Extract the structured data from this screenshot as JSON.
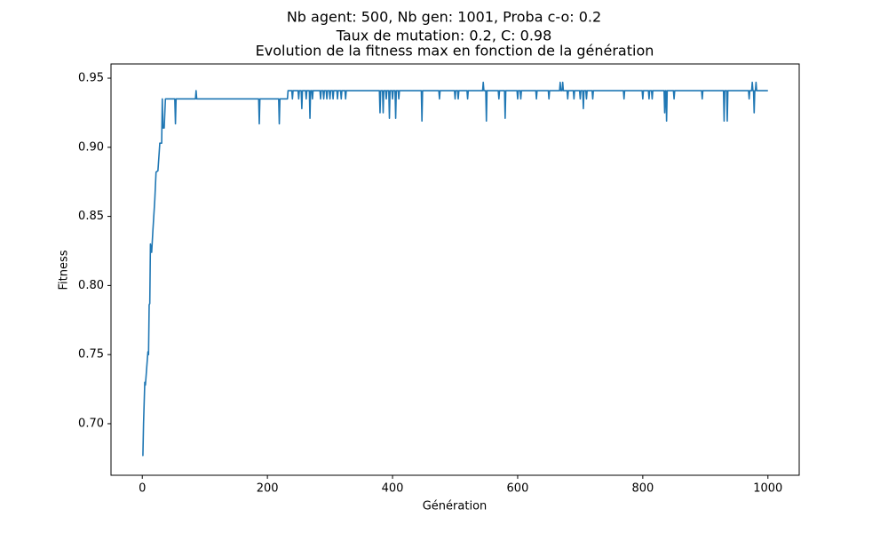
{
  "chart_data": {
    "type": "line",
    "suptitle": [
      "Nb agent: 500, Nb gen: 1001, Proba c-o: 0.2",
      "Taux de mutation: 0.2, C: 0.98"
    ],
    "title": "Evolution de la fitness max en fonction de la génération",
    "xlabel": "Génération",
    "ylabel": "Fitness",
    "xlim": [
      -50,
      1050
    ],
    "ylim": [
      0.6627,
      0.9603
    ],
    "xticks": [
      0,
      200,
      400,
      600,
      800,
      1000
    ],
    "yticks": [
      {
        "value": 0.7,
        "label": "0.70"
      },
      0.75,
      {
        "value": 0.8,
        "label": "0.80"
      },
      0.85,
      {
        "value": 0.9,
        "label": "0.90"
      },
      0.95
    ],
    "grid": false,
    "series": [
      {
        "color": "#1f77b4",
        "x": [
          0,
          1,
          2,
          4,
          5,
          7,
          9,
          10,
          11,
          12,
          13,
          15,
          17,
          20,
          22,
          25,
          27,
          28,
          31,
          32,
          33,
          35,
          37,
          52,
          53,
          54,
          85,
          86,
          87,
          186,
          187,
          188,
          218,
          219,
          220,
          232,
          233,
          239,
          240,
          241,
          249,
          250,
          251,
          254,
          255,
          256,
          261,
          262,
          263,
          267,
          268,
          269,
          271,
          272,
          273,
          284,
          285,
          286,
          289,
          290,
          291,
          294,
          295,
          296,
          299,
          300,
          301,
          304,
          305,
          306,
          311,
          312,
          313,
          317,
          318,
          319,
          324,
          325,
          326,
          379,
          380,
          381,
          384,
          385,
          386,
          389,
          390,
          391,
          394,
          395,
          396,
          399,
          400,
          401,
          404,
          405,
          406,
          409,
          410,
          411,
          446,
          447,
          448,
          474,
          475,
          476,
          499,
          500,
          501,
          504,
          505,
          506,
          519,
          520,
          521,
          544,
          545,
          546,
          549,
          550,
          551,
          569,
          570,
          571,
          579,
          580,
          581,
          599,
          600,
          601,
          604,
          605,
          606,
          629,
          630,
          631,
          649,
          650,
          651,
          667,
          668,
          669,
          671,
          672,
          673,
          679,
          680,
          681,
          689,
          690,
          691,
          699,
          700,
          701,
          704,
          705,
          706,
          709,
          710,
          711,
          719,
          720,
          721,
          769,
          770,
          771,
          799,
          800,
          801,
          809,
          810,
          811,
          814,
          815,
          816,
          834,
          835,
          836,
          837,
          838,
          839,
          849,
          850,
          851,
          894,
          895,
          896,
          929,
          930,
          931,
          934,
          935,
          936,
          969,
          970,
          971,
          974,
          975,
          976,
          977,
          978,
          979,
          980,
          981,
          982,
          1000
        ],
        "values": [
          0.677,
          0.677,
          0.7,
          0.73,
          0.728,
          0.74,
          0.752,
          0.75,
          0.786,
          0.787,
          0.83,
          0.824,
          0.84,
          0.862,
          0.882,
          0.883,
          0.896,
          0.903,
          0.903,
          0.935,
          0.914,
          0.914,
          0.935,
          0.935,
          0.917,
          0.935,
          0.935,
          0.941,
          0.935,
          0.935,
          0.917,
          0.935,
          0.935,
          0.917,
          0.935,
          0.935,
          0.941,
          0.941,
          0.935,
          0.941,
          0.941,
          0.935,
          0.941,
          0.941,
          0.928,
          0.941,
          0.941,
          0.935,
          0.941,
          0.941,
          0.921,
          0.941,
          0.941,
          0.935,
          0.941,
          0.941,
          0.935,
          0.941,
          0.941,
          0.935,
          0.941,
          0.941,
          0.935,
          0.941,
          0.941,
          0.935,
          0.941,
          0.941,
          0.935,
          0.941,
          0.941,
          0.935,
          0.941,
          0.941,
          0.935,
          0.941,
          0.941,
          0.935,
          0.941,
          0.941,
          0.925,
          0.941,
          0.941,
          0.925,
          0.941,
          0.941,
          0.935,
          0.941,
          0.941,
          0.921,
          0.941,
          0.941,
          0.935,
          0.941,
          0.941,
          0.921,
          0.941,
          0.941,
          0.935,
          0.941,
          0.941,
          0.919,
          0.941,
          0.941,
          0.935,
          0.941,
          0.941,
          0.935,
          0.941,
          0.941,
          0.935,
          0.941,
          0.941,
          0.935,
          0.941,
          0.941,
          0.947,
          0.941,
          0.941,
          0.919,
          0.941,
          0.941,
          0.935,
          0.941,
          0.941,
          0.921,
          0.941,
          0.941,
          0.935,
          0.941,
          0.941,
          0.935,
          0.941,
          0.941,
          0.935,
          0.941,
          0.941,
          0.935,
          0.941,
          0.941,
          0.947,
          0.941,
          0.941,
          0.947,
          0.941,
          0.941,
          0.935,
          0.941,
          0.941,
          0.935,
          0.941,
          0.941,
          0.935,
          0.941,
          0.941,
          0.928,
          0.941,
          0.941,
          0.935,
          0.941,
          0.941,
          0.935,
          0.941,
          0.941,
          0.935,
          0.941,
          0.941,
          0.935,
          0.941,
          0.941,
          0.935,
          0.941,
          0.941,
          0.935,
          0.941,
          0.941,
          0.925,
          0.941,
          0.941,
          0.919,
          0.941,
          0.941,
          0.935,
          0.941,
          0.941,
          0.935,
          0.941,
          0.941,
          0.919,
          0.941,
          0.941,
          0.919,
          0.941,
          0.941,
          0.935,
          0.941,
          0.941,
          0.947,
          0.941,
          0.941,
          0.925,
          0.941,
          0.941,
          0.947,
          0.941,
          0.941
        ]
      }
    ]
  }
}
